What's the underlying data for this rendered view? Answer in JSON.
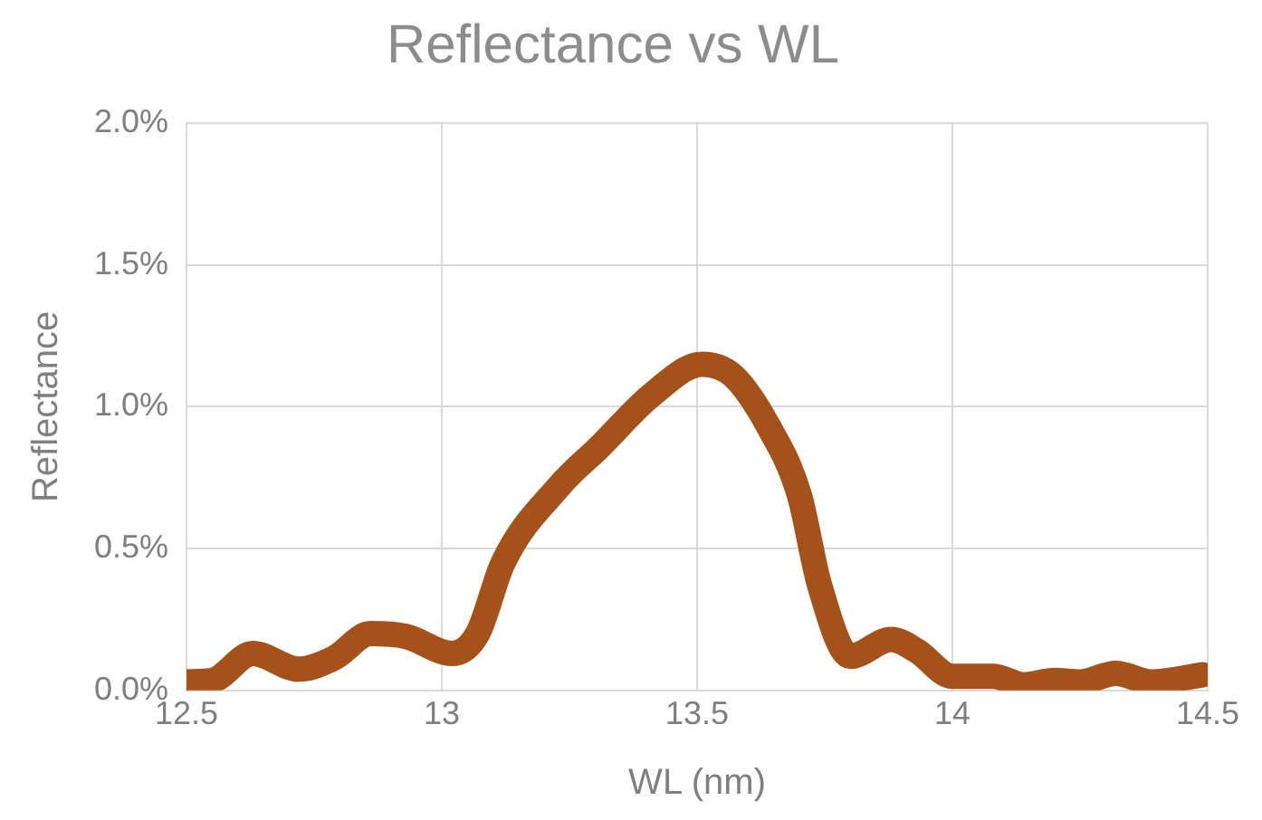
{
  "chart_data": {
    "type": "line",
    "title": "Reflectance vs WL",
    "xlabel": "WL (nm)",
    "ylabel": "Reflectance",
    "x": [
      12.5,
      12.55,
      12.63,
      12.72,
      12.79,
      12.86,
      12.93,
      13.02,
      13.07,
      13.12,
      13.23,
      13.31,
      13.41,
      13.51,
      13.57,
      13.64,
      13.7,
      13.74,
      13.8,
      13.88,
      13.93,
      14.0,
      14.08,
      14.14,
      14.2,
      14.25,
      14.32,
      14.39,
      14.49
    ],
    "series": [
      {
        "color": "#a5521a",
        "values": [
          0.03,
          0.035,
          0.13,
          0.075,
          0.115,
          0.2,
          0.19,
          0.13,
          0.2,
          0.45,
          0.72,
          0.86,
          1.04,
          1.15,
          1.11,
          0.93,
          0.69,
          0.37,
          0.12,
          0.18,
          0.14,
          0.05,
          0.05,
          0.02,
          0.035,
          0.03,
          0.06,
          0.03,
          0.055
        ]
      }
    ],
    "xlim": [
      12.5,
      14.5
    ],
    "xticks": [
      12.5,
      13,
      13.5,
      14,
      14.5
    ],
    "ylim": [
      0,
      2
    ],
    "yticks": [
      {
        "value": 0,
        "label": "0.0%"
      },
      {
        "value": 0.5,
        "label": "0.5%"
      },
      {
        "value": 1,
        "label": "1.0%"
      },
      {
        "value": 1.5,
        "label": "1.5%"
      },
      {
        "value": 2,
        "label": "2.0%"
      }
    ],
    "grid": true,
    "legend": false,
    "marker": "none",
    "line_style": "solid"
  }
}
